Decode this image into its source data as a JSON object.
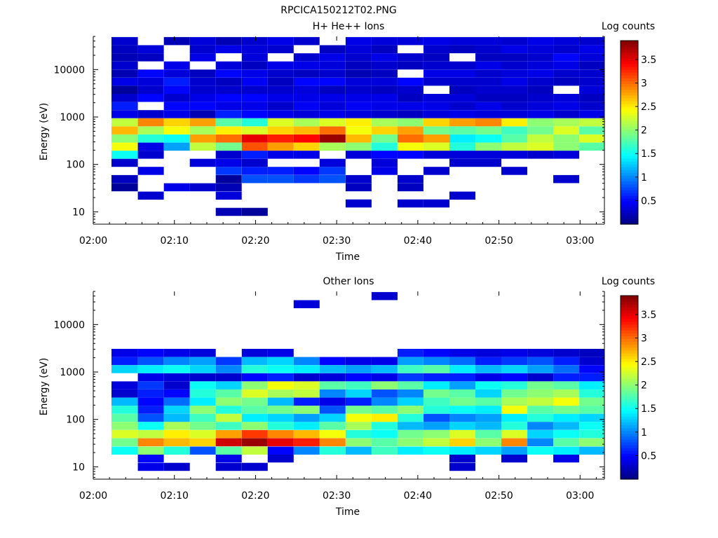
{
  "page_title": "RPCICA150212T02.PNG",
  "colors": {
    "background": "#ffffff",
    "colormap": "jet"
  },
  "chart_data": [
    {
      "type": "heatmap",
      "title": "H+ He++ Ions",
      "xlabel": "Time",
      "ylabel": "Energy (eV)",
      "colorbar_label": "Log counts",
      "x_tick_labels": [
        "02:00",
        "02:10",
        "02:20",
        "02:30",
        "02:40",
        "02:50",
        "03:00"
      ],
      "y_tick_labels": [
        "10",
        "100",
        "1000",
        "10000"
      ],
      "colorbar_tick_labels": [
        "0.5",
        "1",
        "1.5",
        "2",
        "2.5",
        "3",
        "3.5"
      ],
      "y_scale": "log",
      "ylim": [
        5.5,
        50000
      ],
      "xlim_minutes": [
        0,
        63
      ],
      "clim": [
        0.0,
        3.9
      ],
      "time_bins_minutes": [
        2.25,
        5.5,
        8.7,
        11.9,
        15.1,
        18.3,
        21.5,
        24.7,
        27.9,
        31.1,
        34.3,
        37.5,
        40.7,
        43.9,
        47.1,
        50.3,
        53.5,
        56.7,
        59.9,
        63.0
      ],
      "energy_bins_eV": [
        10,
        15,
        22,
        33,
        49,
        73,
        108,
        160,
        237,
        352,
        522,
        774,
        1148,
        1702,
        2524,
        3743,
        5551,
        8232,
        12208,
        18104,
        26848,
        39815
      ],
      "values": [
        [
          0,
          0,
          0,
          0.1,
          0.25,
          0,
          0.3,
          1.5,
          2.4,
          2.0,
          2.7,
          2.2,
          0.4,
          0.6,
          0.3,
          0.1,
          0.4,
          0.2,
          0.3,
          0.2,
          0.25,
          0.3
        ],
        [
          0,
          0,
          0.3,
          0,
          0,
          0.4,
          0,
          0.3,
          0.4,
          1.6,
          2.1,
          2.9,
          0.3,
          0,
          0.5,
          0.3,
          0.35,
          0.5,
          0,
          0.25,
          0.35,
          0
        ],
        [
          0,
          0,
          0,
          0.4,
          0,
          0,
          0,
          0,
          1.1,
          1.5,
          2.4,
          2.6,
          0.4,
          0.5,
          0.3,
          0.5,
          0.6,
          0.35,
          0.4,
          0,
          0,
          0.2
        ],
        [
          0,
          0,
          0,
          0.3,
          0,
          0,
          0.35,
          0,
          2.2,
          2.8,
          2.1,
          2.8,
          0.2,
          0.5,
          0.4,
          0.3,
          0.3,
          0.25,
          0,
          0.4,
          0.3,
          0.35
        ],
        [
          0.2,
          0,
          0.35,
          0.2,
          0.1,
          0.7,
          0.4,
          0.3,
          1.9,
          3.0,
          2.5,
          1.8,
          0.6,
          0.4,
          0.5,
          0.3,
          0.25,
          0.5,
          0.35,
          0,
          0.4,
          0.2
        ],
        [
          0.1,
          0,
          0,
          0,
          0.8,
          0.6,
          0.3,
          0.6,
          3.1,
          3.5,
          2.3,
          1.6,
          0.5,
          0.4,
          0.5,
          0.3,
          0.45,
          0.4,
          0.25,
          0.35,
          0.35,
          0.3
        ],
        [
          0,
          0,
          0,
          0,
          0.8,
          0.6,
          0,
          0.4,
          2.8,
          3.3,
          2.6,
          2.3,
          0.4,
          0.3,
          0.4,
          0.3,
          0.25,
          0.3,
          0.4,
          0,
          0.3,
          0.4
        ],
        [
          0,
          0,
          0,
          0,
          0.7,
          0.5,
          0,
          0.4,
          2.6,
          3.4,
          2.7,
          2.1,
          0.35,
          0.45,
          0.4,
          0.35,
          0.5,
          0.25,
          0.4,
          0.3,
          0,
          0.3
        ],
        [
          0,
          0,
          0,
          0,
          0.8,
          0.7,
          0.35,
          0,
          2.1,
          3.8,
          3.0,
          2.3,
          0.4,
          0.35,
          0.4,
          0.25,
          0.5,
          0.3,
          0.35,
          0.4,
          0.25,
          0
        ],
        [
          0,
          0.3,
          0,
          0.25,
          0.3,
          0,
          0,
          0.35,
          2.0,
          2.7,
          2.4,
          2.5,
          0.35,
          0.45,
          0.4,
          0.3,
          0.35,
          0.2,
          0.25,
          0.3,
          0.35,
          0.4
        ],
        [
          0,
          0,
          0,
          0,
          0,
          0.4,
          0.35,
          0.5,
          1.6,
          1.9,
          2.6,
          2.1,
          0.3,
          0.4,
          0.4,
          0.25,
          0.35,
          0.25,
          0.3,
          0.4,
          0.25,
          0.35
        ],
        [
          0,
          0.3,
          0,
          0.25,
          0.3,
          0,
          0,
          0.5,
          2.4,
          3.0,
          2.8,
          2.0,
          0.25,
          0.4,
          0.25,
          0.3,
          0.5,
          0,
          0.25,
          0.3,
          0,
          0.35
        ],
        [
          0,
          0.3,
          0,
          0,
          0,
          0.3,
          0,
          0.35,
          2.3,
          2.8,
          1.9,
          2.6,
          0.35,
          0.4,
          0.35,
          0,
          0.3,
          0.4,
          0.3,
          0.25,
          0.3,
          0.4
        ],
        [
          0,
          0,
          0.3,
          0,
          0,
          0,
          0.3,
          0.35,
          1.6,
          1.4,
          1.8,
          2.8,
          0.4,
          0.3,
          0.35,
          0.25,
          0.3,
          0.4,
          0.3,
          0,
          0.25,
          0.35
        ],
        [
          0,
          0,
          0,
          0,
          0,
          0,
          0.3,
          0.35,
          2.0,
          1.5,
          1.9,
          2.9,
          0.35,
          0.4,
          0.25,
          0.3,
          0.3,
          0.3,
          0.4,
          0.25,
          0.3,
          0.35
        ],
        [
          0,
          0,
          0,
          0,
          0,
          0.3,
          0,
          0.35,
          2.2,
          1.8,
          1.7,
          2.5,
          0.35,
          0.3,
          0.25,
          0.3,
          0.4,
          0.35,
          0.3,
          0.25,
          0.4,
          0.3
        ],
        [
          0,
          0,
          0,
          0,
          0,
          0,
          0,
          0.3,
          2.3,
          2.2,
          1.9,
          2.0,
          0.4,
          0.35,
          0.3,
          0.25,
          0.3,
          0.4,
          0.35,
          0.3,
          0.35,
          0.4
        ],
        [
          0,
          0,
          0,
          0,
          0.3,
          0,
          0,
          0.35,
          2.0,
          2.0,
          2.3,
          2.1,
          0.3,
          0.4,
          0.35,
          0,
          0.25,
          0.3,
          0.4,
          0.5,
          0.3,
          0.35
        ],
        [
          0,
          0,
          0,
          0,
          0,
          0,
          0,
          0,
          1.8,
          2.3,
          1.8,
          2.2,
          0.4,
          0.3,
          0.25,
          0.35,
          0.3,
          0.3,
          0.25,
          0.35,
          0.4,
          0.3
        ],
        [
          0,
          0,
          0,
          0,
          0,
          0,
          0.3,
          0.25,
          1.4,
          1.9,
          2.0,
          1.8,
          0.25,
          0.35,
          0.4,
          0.3,
          0.35,
          0.25,
          0.3,
          0.4,
          0.35,
          0.3
        ]
      ]
    },
    {
      "type": "heatmap",
      "title": "Other Ions",
      "xlabel": "Time",
      "ylabel": "Energy (eV)",
      "colorbar_label": "Log counts",
      "x_tick_labels": [
        "02:00",
        "02:10",
        "02:20",
        "02:30",
        "02:40",
        "02:50",
        "03:00"
      ],
      "y_tick_labels": [
        "10",
        "100",
        "1000",
        "10000"
      ],
      "colorbar_tick_labels": [
        "0.5",
        "1",
        "1.5",
        "2",
        "2.5",
        "3",
        "3.5"
      ],
      "y_scale": "log",
      "ylim": [
        5.5,
        50000
      ],
      "xlim_minutes": [
        0,
        63
      ],
      "clim": [
        0.0,
        3.9
      ],
      "time_bins_minutes": [
        2.25,
        5.5,
        8.7,
        11.9,
        15.1,
        18.3,
        21.5,
        24.7,
        27.9,
        31.1,
        34.3,
        37.5,
        40.7,
        43.9,
        47.1,
        50.3,
        53.5,
        56.7,
        59.9,
        63.0
      ],
      "energy_bins_eV": [
        10,
        15,
        22,
        33,
        49,
        73,
        108,
        160,
        237,
        352,
        522,
        774,
        1148,
        1702,
        2524,
        3743,
        5551,
        8232,
        12208,
        18104,
        26848,
        39815
      ],
      "values": [
        [
          0,
          0,
          1.5,
          1.9,
          2.3,
          2.0,
          1.8,
          1.6,
          1.2,
          0.3,
          0.35,
          0,
          1.3,
          0.6,
          0.4,
          0,
          0,
          0,
          0,
          0,
          0,
          0
        ],
        [
          0.4,
          0.5,
          2.0,
          2.9,
          2.2,
          1.5,
          0.8,
          0.6,
          0.5,
          0.6,
          0.7,
          0.4,
          1.4,
          0.8,
          0.5,
          0,
          0,
          0,
          0,
          0,
          0,
          0
        ],
        [
          0.3,
          0,
          1.6,
          2.7,
          2.5,
          2.1,
          1.2,
          1.3,
          0.9,
          0.5,
          0.3,
          0.35,
          1.5,
          1.0,
          0.4,
          0,
          0,
          0,
          0,
          0,
          0,
          0
        ],
        [
          0,
          0,
          0.8,
          2.6,
          2.3,
          1.9,
          1.7,
          2.0,
          1.4,
          1.6,
          1.5,
          0.3,
          1.3,
          1.1,
          0.35,
          0,
          0,
          0,
          0,
          0,
          0,
          0
        ],
        [
          0.3,
          0.4,
          1.8,
          3.6,
          2.8,
          1.7,
          2.2,
          1.6,
          2.0,
          1.8,
          1.3,
          0.3,
          1.0,
          0.7,
          0,
          0,
          0,
          0,
          0,
          0,
          0,
          0
        ],
        [
          0.3,
          0,
          2.2,
          3.8,
          3.2,
          2.0,
          1.4,
          1.8,
          1.9,
          2.3,
          2.0,
          0.5,
          1.6,
          1.2,
          0.35,
          0,
          0,
          0,
          0,
          0,
          0,
          0
        ],
        [
          0,
          0.3,
          0.5,
          3.5,
          2.9,
          1.6,
          1.3,
          1.9,
          1.2,
          2.1,
          2.4,
          0.6,
          1.5,
          1.3,
          0.4,
          0,
          0,
          0,
          0,
          0,
          0,
          0
        ],
        [
          0,
          0,
          1.0,
          3.3,
          2.7,
          1.4,
          1.1,
          2.0,
          0.6,
          2.2,
          2.3,
          0.3,
          1.4,
          1.0,
          0,
          0,
          0,
          0,
          0,
          0,
          0.35,
          0
        ],
        [
          0,
          0,
          1.6,
          2.9,
          2.4,
          1.8,
          1.3,
          0.8,
          0.4,
          1.0,
          1.8,
          0.35,
          1.2,
          0.5,
          0,
          0,
          0,
          0,
          0,
          0,
          0,
          0
        ],
        [
          0,
          0,
          1.2,
          2.0,
          1.6,
          2.1,
          2.4,
          1.9,
          0.6,
          1.3,
          1.7,
          0.5,
          1.1,
          0.4,
          0,
          0,
          0,
          0,
          0,
          0,
          0,
          0
        ],
        [
          0,
          0,
          1.7,
          1.8,
          1.5,
          1.6,
          2.5,
          1.8,
          1.0,
          0.8,
          2.0,
          0.4,
          1.2,
          0.4,
          0,
          0,
          0,
          0,
          0,
          0,
          0,
          0.3
        ],
        [
          0,
          0,
          1.4,
          2.0,
          1.9,
          1.2,
          1.6,
          2.0,
          1.3,
          1.0,
          1.8,
          0.7,
          1.7,
          1.1,
          0.6,
          0,
          0,
          0,
          0,
          0,
          0,
          0
        ],
        [
          0,
          0,
          1.5,
          2.2,
          2.0,
          1.1,
          0.8,
          1.6,
          1.7,
          1.9,
          1.4,
          0.6,
          1.8,
          1.0,
          0.5,
          0,
          0,
          0,
          0,
          0,
          0,
          0
        ],
        [
          0.3,
          0.3,
          1.4,
          2.6,
          2.3,
          1.3,
          1.0,
          1.5,
          1.9,
          1.8,
          1.1,
          0.6,
          1.4,
          0.9,
          0.4,
          0,
          0,
          0,
          0,
          0,
          0,
          0
        ],
        [
          0,
          0,
          1.3,
          2.0,
          1.8,
          1.2,
          1.1,
          1.4,
          1.8,
          1.3,
          1.5,
          0.4,
          1.2,
          0.6,
          0.35,
          0,
          0,
          0,
          0,
          0,
          0,
          0
        ],
        [
          0,
          0.3,
          1.1,
          2.9,
          2.3,
          1.6,
          1.4,
          2.4,
          2.1,
          1.9,
          1.6,
          0.5,
          1.3,
          0.7,
          0.4,
          0,
          0,
          0,
          0,
          0,
          0,
          0
        ],
        [
          0,
          0,
          1.5,
          1.0,
          1.3,
          1.0,
          1.6,
          1.8,
          2.2,
          2.0,
          1.9,
          0.3,
          1.1,
          0.8,
          0.35,
          0,
          0,
          0,
          0,
          0,
          0,
          0
        ],
        [
          0,
          0.4,
          1.4,
          1.8,
          1.5,
          1.2,
          1.4,
          1.9,
          2.4,
          2.1,
          1.8,
          0.6,
          0.9,
          0.6,
          0.3,
          0,
          0,
          0,
          0,
          0,
          0,
          0
        ],
        [
          0,
          0,
          1.2,
          2.0,
          1.6,
          1.5,
          1.3,
          1.8,
          1.9,
          1.6,
          1.4,
          0.6,
          0.5,
          0.3,
          0.25,
          0,
          0,
          0,
          0,
          0,
          0,
          0
        ],
        [
          0,
          0,
          1.3,
          3.2,
          2.7,
          1.8,
          1.4,
          1.7,
          2.0,
          1.5,
          1.2,
          0.5,
          1.3,
          0.8,
          0.4,
          0,
          0,
          0,
          0,
          0,
          0,
          0
        ]
      ]
    }
  ]
}
